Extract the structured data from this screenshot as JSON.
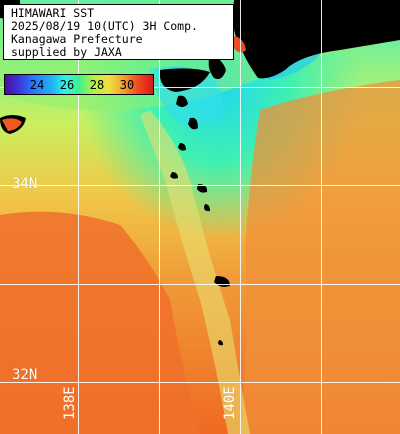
{
  "title": {
    "line1": "HIMAWARI SST",
    "line2": "2025/08/19 10(UTC) 3H Comp.",
    "line3": "Kanagawa Prefecture",
    "line4": "supplied by JAXA"
  },
  "colorbar": {
    "ticks": [
      "24",
      "26",
      "28",
      "30"
    ],
    "colors": {
      "cold": "#4b0fa0",
      "cool": "#2ef0e8",
      "mid": "#40f090",
      "warm": "#f0a030",
      "hot": "#d81818"
    }
  },
  "grid": {
    "latitudes": [
      "34N",
      "32N"
    ],
    "longitudes": [
      "138E",
      "140E"
    ]
  },
  "colors": {
    "sea_warm": "#f07a2a",
    "sea_mid": "#f0b040",
    "sea_cool": "#a8f070",
    "sea_cold": "#30e0e8",
    "land": "#000000",
    "grid": "#ffffff"
  }
}
